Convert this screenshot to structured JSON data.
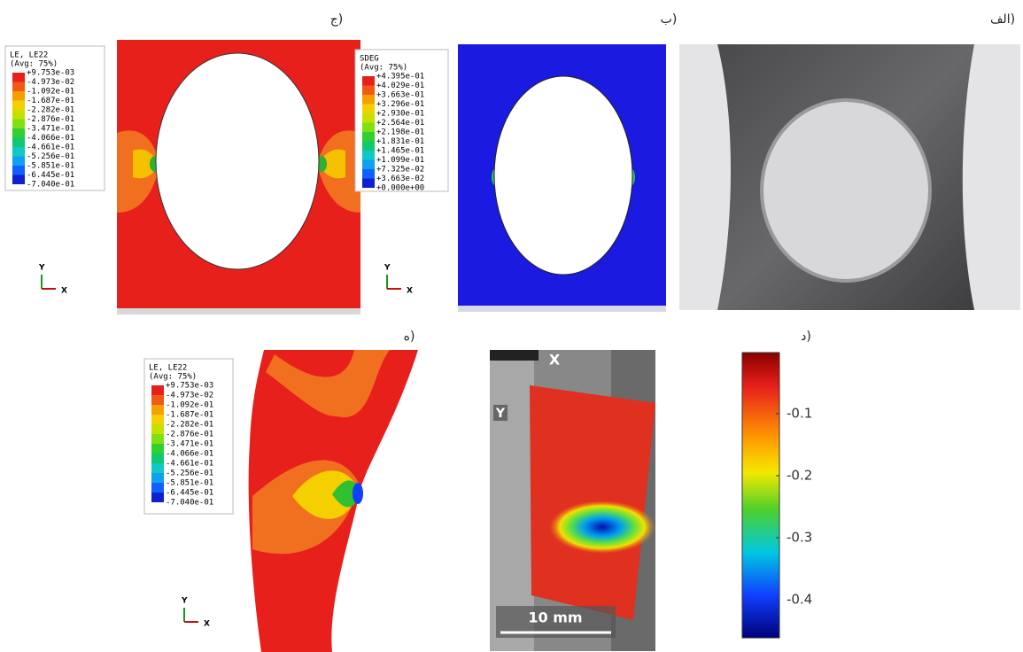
{
  "panels": {
    "a": "الف)",
    "b": "ب)",
    "c": "ج)",
    "d": "د)",
    "e": "ه)"
  },
  "legend_le": {
    "title": "LE, LE22",
    "subtitle": "(Avg: 75%)",
    "values": [
      "+9.753e-03",
      "-4.973e-02",
      "-1.092e-01",
      "-1.687e-01",
      "-2.282e-01",
      "-2.876e-01",
      "-3.471e-01",
      "-4.066e-01",
      "-4.661e-01",
      "-5.256e-01",
      "-5.851e-01",
      "-6.445e-01",
      "-7.040e-01"
    ]
  },
  "legend_sdeg": {
    "title": "SDEG",
    "subtitle": "(Avg: 75%)",
    "values": [
      "+4.395e-01",
      "+4.029e-01",
      "+3.663e-01",
      "+3.296e-01",
      "+2.930e-01",
      "+2.564e-01",
      "+2.198e-01",
      "+1.831e-01",
      "+1.465e-01",
      "+1.099e-01",
      "+7.325e-02",
      "+3.663e-02",
      "+0.000e+00"
    ]
  },
  "triad": {
    "y": "Y",
    "x": "X"
  },
  "dic": {
    "x_label": "X",
    "y_label": "Y",
    "scale_bar": "10 mm",
    "colorbar_ticks": [
      "-0.1",
      "-0.2",
      "-0.3",
      "-0.4"
    ]
  }
}
